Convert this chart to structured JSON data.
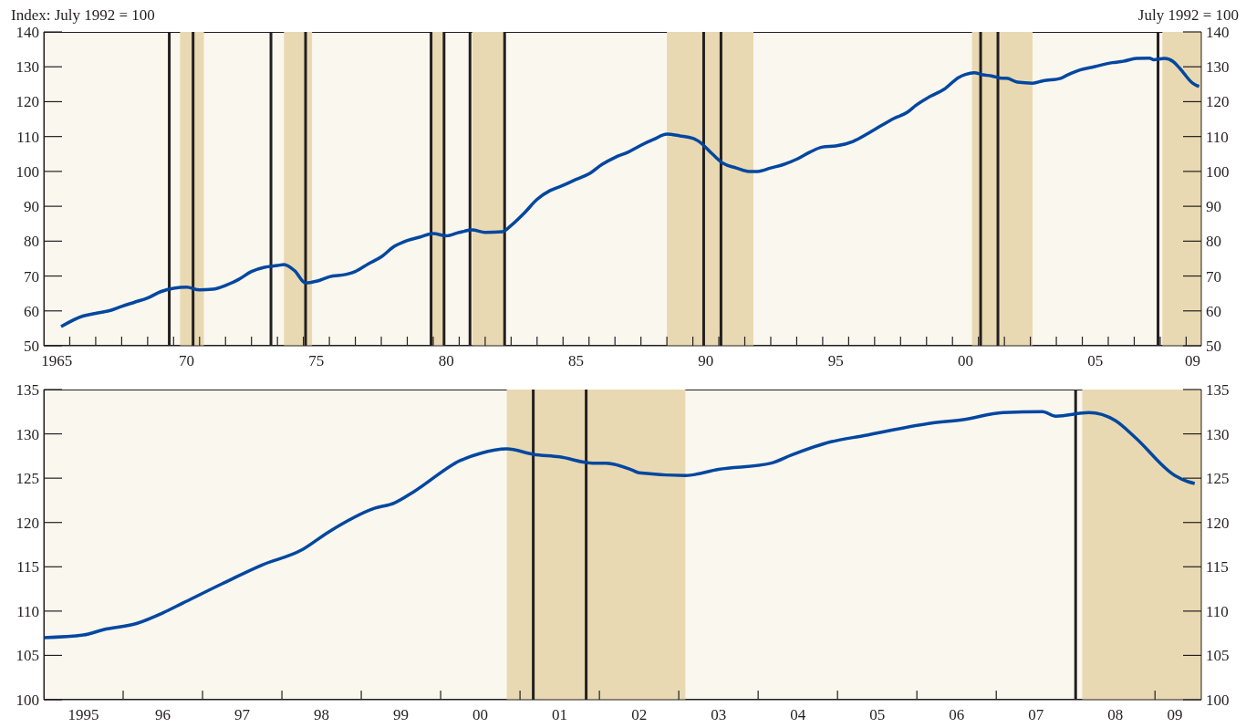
{
  "chart_data": [
    {
      "type": "line",
      "ylabel": "Index: July 1992 = 100",
      "y2label": "July 1992 = 100",
      "x": [
        "1965-09",
        "1966-07",
        "1967-01",
        "1967-07",
        "1968-01",
        "1968-07",
        "1969-01",
        "1969-07",
        "1970-01",
        "1970-07",
        "1971-01",
        "1971-07",
        "1972-01",
        "1972-07",
        "1973-01",
        "1973-07",
        "1974-01",
        "1974-04",
        "1974-09",
        "1975-02",
        "1975-07",
        "1976-01",
        "1976-09",
        "1977-01",
        "1977-07",
        "1978-01",
        "1978-07",
        "1979-01",
        "1979-07",
        "1980-01",
        "1980-07",
        "1981-01",
        "1981-07",
        "1982-01",
        "1982-09",
        "1983-01",
        "1983-07",
        "1984-01",
        "1984-07",
        "1985-01",
        "1985-07",
        "1986-01",
        "1986-07",
        "1987-01",
        "1987-07",
        "1988-01",
        "1988-07",
        "1989-01",
        "1989-07",
        "1990-01",
        "1990-04",
        "1990-10",
        "1991-03",
        "1991-09",
        "1992-03",
        "1992-07",
        "1993-01",
        "1993-07",
        "1994-01",
        "1994-07",
        "1995-01",
        "1995-07",
        "1996-03",
        "1996-10",
        "1997-04",
        "1997-10",
        "1998-04",
        "1998-08",
        "1999-03",
        "1999-09",
        "2000-04",
        "2000-07",
        "2000-11",
        "2001-03",
        "2001-07",
        "2001-12",
        "2002-02",
        "2002-07",
        "2003-02",
        "2003-07",
        "2004-03",
        "2004-06",
        "2004-12",
        "2005-05",
        "2006-03",
        "2006-08",
        "2007-02",
        "2007-08",
        "2007-10",
        "2008-03",
        "2008-07",
        "2008-10",
        "2009-04",
        "2009-06",
        "2009-07"
      ],
      "series": [
        {
          "color": "#0047a0",
          "values": [
            55.5,
            58.5,
            59.3,
            60,
            61.3,
            62.5,
            63.7,
            65.5,
            66.5,
            66.8,
            66,
            66.2,
            67.3,
            69,
            71.3,
            72.5,
            73,
            73.3,
            71.5,
            68,
            68.5,
            69.8,
            70.5,
            71.3,
            73.5,
            75.5,
            78.5,
            80.2,
            81.2,
            82.2,
            81.5,
            82.5,
            83.2,
            82.5,
            82.7,
            84.5,
            88,
            92,
            94.5,
            96,
            97.7,
            99.3,
            102,
            104,
            105.5,
            107.5,
            109.2,
            110.7,
            110.2,
            109.5,
            108.5,
            105,
            102.3,
            101,
            100,
            100,
            101,
            102,
            103.5,
            105.5,
            107,
            107.3,
            108.6,
            110.9,
            113.1,
            115.2,
            116.9,
            118.9,
            121.6,
            123.5,
            127,
            127.8,
            128.3,
            127.7,
            127.4,
            126.7,
            126.7,
            125.6,
            125.3,
            126,
            126.7,
            127.6,
            129.1,
            129.8,
            131.2,
            131.6,
            132.4,
            132.5,
            132,
            132.4,
            131.5,
            129.6,
            125.3,
            124.6,
            124.4
          ]
        }
      ],
      "xlim": [
        "1965-01",
        "2009-08"
      ],
      "xticks": [
        {
          "value": "1965-07",
          "label": "1965"
        },
        {
          "value": "1966",
          "label": null
        },
        {
          "value": "1967",
          "label": null
        },
        {
          "value": "1968",
          "label": null
        },
        {
          "value": "1969",
          "label": null
        },
        {
          "value": "1970",
          "label": null
        },
        {
          "value": "1970-07",
          "label": "70"
        },
        {
          "value": "1971",
          "label": null
        },
        {
          "value": "1972",
          "label": null
        },
        {
          "value": "1973",
          "label": null
        },
        {
          "value": "1974",
          "label": null
        },
        {
          "value": "1975",
          "label": null
        },
        {
          "value": "1975-07",
          "label": "75"
        },
        {
          "value": "1976",
          "label": null
        },
        {
          "value": "1977",
          "label": null
        },
        {
          "value": "1978",
          "label": null
        },
        {
          "value": "1979",
          "label": null
        },
        {
          "value": "1980",
          "label": null
        },
        {
          "value": "1980-07",
          "label": "80"
        },
        {
          "value": "1981",
          "label": null
        },
        {
          "value": "1982",
          "label": null
        },
        {
          "value": "1983",
          "label": null
        },
        {
          "value": "1984",
          "label": null
        },
        {
          "value": "1985",
          "label": null
        },
        {
          "value": "1985-07",
          "label": "85"
        },
        {
          "value": "1986",
          "label": null
        },
        {
          "value": "1987",
          "label": null
        },
        {
          "value": "1988",
          "label": null
        },
        {
          "value": "1989",
          "label": null
        },
        {
          "value": "1990",
          "label": null
        },
        {
          "value": "1990-07",
          "label": "90"
        },
        {
          "value": "1991",
          "label": null
        },
        {
          "value": "1992",
          "label": null
        },
        {
          "value": "1993",
          "label": null
        },
        {
          "value": "1994",
          "label": null
        },
        {
          "value": "1995",
          "label": null
        },
        {
          "value": "1995-07",
          "label": "95"
        },
        {
          "value": "1996",
          "label": null
        },
        {
          "value": "1997",
          "label": null
        },
        {
          "value": "1998",
          "label": null
        },
        {
          "value": "1999",
          "label": null
        },
        {
          "value": "2000",
          "label": null
        },
        {
          "value": "2000-07",
          "label": "00"
        },
        {
          "value": "2001",
          "label": null
        },
        {
          "value": "2002",
          "label": null
        },
        {
          "value": "2003",
          "label": null
        },
        {
          "value": "2004",
          "label": null
        },
        {
          "value": "2005",
          "label": null
        },
        {
          "value": "2005-07",
          "label": "05"
        },
        {
          "value": "2006",
          "label": null
        },
        {
          "value": "2007",
          "label": null
        },
        {
          "value": "2008",
          "label": null
        },
        {
          "value": "2009",
          "label": null
        },
        {
          "value": "2009-04",
          "label": "09"
        }
      ],
      "ylim": [
        50,
        140
      ],
      "yticks": [
        50,
        60,
        70,
        80,
        90,
        100,
        110,
        120,
        130,
        140
      ],
      "y2lim": [
        50,
        140
      ],
      "y2ticks": [
        50,
        60,
        70,
        80,
        90,
        100,
        110,
        120,
        130,
        140
      ],
      "bands": [
        {
          "axis": "x",
          "from": "1970-04",
          "to": "1971-03",
          "color": "#e9d9b2"
        },
        {
          "axis": "x",
          "from": "1974-04",
          "to": "1975-05",
          "color": "#e9d9b2"
        },
        {
          "axis": "x",
          "from": "1979-12",
          "to": "1980-06",
          "color": "#e9d9b2"
        },
        {
          "axis": "x",
          "from": "1981-07",
          "to": "1982-10",
          "color": "#e9d9b2"
        },
        {
          "axis": "x",
          "from": "1989-01",
          "to": "1992-05",
          "color": "#e9d9b2"
        },
        {
          "axis": "x",
          "from": "2000-10",
          "to": "2003-02",
          "color": "#e9d9b2"
        },
        {
          "axis": "x",
          "from": "2008-02",
          "to": "2009-08",
          "color": "#e9d9b2"
        }
      ],
      "ref_lines": [
        {
          "axis": "x",
          "value": "1969-11",
          "color": "#231f20"
        },
        {
          "axis": "x",
          "value": "1970-10",
          "color": "#231f20"
        },
        {
          "axis": "x",
          "value": "1973-10",
          "color": "#231f20"
        },
        {
          "axis": "x",
          "value": "1975-02",
          "color": "#231f20"
        },
        {
          "axis": "x",
          "value": "1979-12",
          "color": "#231f20"
        },
        {
          "axis": "x",
          "value": "1980-06",
          "color": "#231f20"
        },
        {
          "axis": "x",
          "value": "1981-06",
          "color": "#231f20"
        },
        {
          "axis": "x",
          "value": "1982-10",
          "color": "#231f20"
        },
        {
          "axis": "x",
          "value": "1990-06",
          "color": "#231f20"
        },
        {
          "axis": "x",
          "value": "1991-02",
          "color": "#231f20"
        },
        {
          "axis": "x",
          "value": "2001-02",
          "color": "#231f20"
        },
        {
          "axis": "x",
          "value": "2001-10",
          "color": "#231f20"
        },
        {
          "axis": "x",
          "value": "2007-12",
          "color": "#231f20"
        }
      ]
    },
    {
      "type": "line",
      "x": [
        "1995-01",
        "1995-07",
        "1995-10",
        "1996-03",
        "1996-07",
        "1996-10",
        "1997-04",
        "1997-10",
        "1998-04",
        "1998-08",
        "1999-03",
        "1999-06",
        "1999-09",
        "2000-04",
        "2000-07",
        "2000-11",
        "2001-03",
        "2001-07",
        "2001-12",
        "2002-02",
        "2002-06",
        "2002-07",
        "2003-02",
        "2003-07",
        "2004-03",
        "2004-06",
        "2004-12",
        "2005-05",
        "2006-03",
        "2006-08",
        "2007-02",
        "2007-08",
        "2007-10",
        "2008-03",
        "2008-07",
        "2008-10",
        "2009-04",
        "2009-06",
        "2009-07"
      ],
      "series": [
        {
          "color": "#0047a0",
          "values": [
            107.0,
            107.3,
            107.9,
            108.6,
            109.8,
            110.9,
            113.1,
            115.2,
            116.9,
            118.9,
            121.6,
            122.2,
            123.5,
            127.0,
            127.8,
            128.3,
            127.7,
            127.4,
            126.7,
            126.7,
            125.9,
            125.6,
            125.3,
            126.0,
            126.7,
            127.6,
            129.1,
            129.8,
            131.2,
            131.6,
            132.4,
            132.5,
            132.0,
            132.4,
            131.5,
            129.6,
            125.3,
            124.6,
            124.4
          ]
        }
      ],
      "xlim": [
        "1995-01",
        "2009-08"
      ],
      "xticks": [
        {
          "value": "1995-07",
          "label": "1995"
        },
        {
          "value": "1996",
          "label": null
        },
        {
          "value": "1996-07",
          "label": "96"
        },
        {
          "value": "1997",
          "label": null
        },
        {
          "value": "1997-07",
          "label": "97"
        },
        {
          "value": "1998",
          "label": null
        },
        {
          "value": "1998-07",
          "label": "98"
        },
        {
          "value": "1999",
          "label": null
        },
        {
          "value": "1999-07",
          "label": "99"
        },
        {
          "value": "2000",
          "label": null
        },
        {
          "value": "2000-07",
          "label": "00"
        },
        {
          "value": "2001",
          "label": null
        },
        {
          "value": "2001-07",
          "label": "01"
        },
        {
          "value": "2002",
          "label": null
        },
        {
          "value": "2002-07",
          "label": "02"
        },
        {
          "value": "2003",
          "label": null
        },
        {
          "value": "2003-07",
          "label": "03"
        },
        {
          "value": "2004",
          "label": null
        },
        {
          "value": "2004-07",
          "label": "04"
        },
        {
          "value": "2005",
          "label": null
        },
        {
          "value": "2005-07",
          "label": "05"
        },
        {
          "value": "2006",
          "label": null
        },
        {
          "value": "2006-07",
          "label": "06"
        },
        {
          "value": "2007",
          "label": null
        },
        {
          "value": "2007-07",
          "label": "07"
        },
        {
          "value": "2008",
          "label": null
        },
        {
          "value": "2008-07",
          "label": "08"
        },
        {
          "value": "2009",
          "label": null
        },
        {
          "value": "2009-04",
          "label": "09"
        }
      ],
      "ylim": [
        100,
        135
      ],
      "yticks": [
        100,
        105,
        110,
        115,
        120,
        125,
        130,
        135
      ],
      "y2lim": [
        100,
        135
      ],
      "y2ticks": [
        100,
        105,
        110,
        115,
        120,
        125,
        130,
        135
      ],
      "bands": [
        {
          "axis": "x",
          "from": "2000-11",
          "to": "2003-02",
          "color": "#e9d9b2"
        },
        {
          "axis": "x",
          "from": "2008-02",
          "to": "2009-08",
          "color": "#e9d9b2"
        }
      ],
      "ref_lines": [
        {
          "axis": "x",
          "value": "2001-03",
          "color": "#231f20"
        },
        {
          "axis": "x",
          "value": "2001-11",
          "color": "#231f20"
        },
        {
          "axis": "x",
          "value": "2008-01",
          "color": "#231f20"
        }
      ]
    }
  ]
}
